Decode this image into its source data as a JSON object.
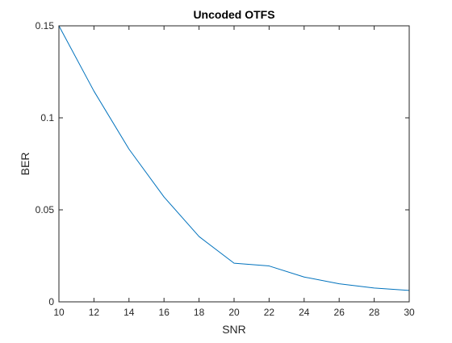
{
  "chart_data": {
    "type": "line",
    "title": "Uncoded OTFS",
    "xlabel": "SNR",
    "ylabel": "BER",
    "xlim": [
      10,
      30
    ],
    "ylim": [
      0,
      0.15
    ],
    "xticks": [
      10,
      12,
      14,
      16,
      18,
      20,
      22,
      24,
      26,
      28,
      30
    ],
    "xtick_labels": [
      "10",
      "12",
      "14",
      "16",
      "18",
      "20",
      "22",
      "24",
      "26",
      "28",
      "30"
    ],
    "yticks": [
      0,
      0.05,
      0.1,
      0.15
    ],
    "ytick_labels": [
      "0",
      "0.05",
      "0.1",
      "0.15"
    ],
    "grid": false,
    "box": true,
    "series": [
      {
        "color": "#0072BD",
        "x": [
          10,
          12,
          14,
          16,
          18,
          20,
          22,
          24,
          26,
          28,
          30
        ],
        "y": [
          0.15,
          0.1145,
          0.083,
          0.057,
          0.0355,
          0.021,
          0.0195,
          0.0135,
          0.0098,
          0.0075,
          0.0062
        ]
      }
    ]
  }
}
